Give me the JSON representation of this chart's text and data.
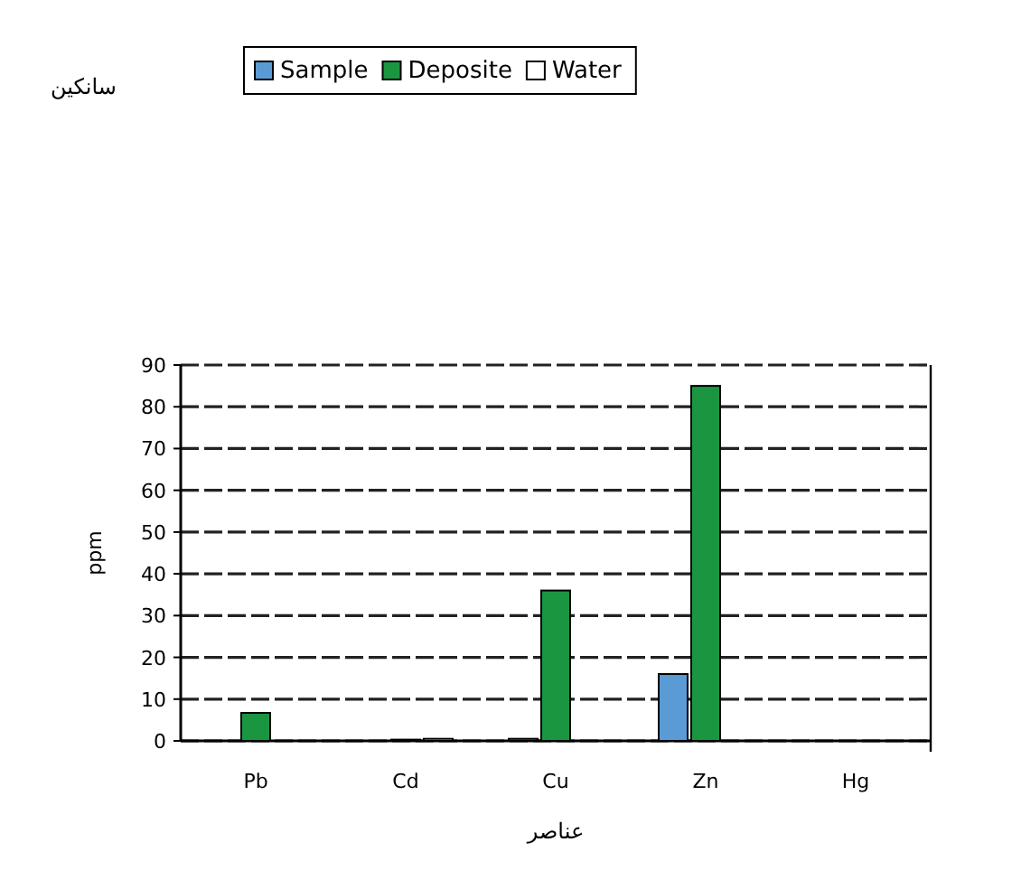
{
  "chart_data": {
    "type": "bar",
    "title": "سانکین",
    "xlabel": "عناصر",
    "ylabel": "ppm",
    "categories": [
      "Pb",
      "Cd",
      "Cu",
      "Zn",
      "Hg"
    ],
    "series": [
      {
        "name": "Sample",
        "color": "#5b9bd5",
        "values": [
          0,
          0,
          0.5,
          16,
          0
        ]
      },
      {
        "name": "Deposite",
        "color": "#1a9641",
        "values": [
          6.7,
          0.3,
          36,
          85,
          0
        ]
      },
      {
        "name": "Water",
        "color": "#ffffff",
        "values": [
          0,
          0.5,
          0,
          0,
          0
        ]
      }
    ],
    "ylim": [
      0,
      90
    ],
    "yticks": [
      0,
      10,
      20,
      30,
      40,
      50,
      60,
      70,
      80,
      90
    ],
    "grid": "y",
    "legend": "top"
  }
}
